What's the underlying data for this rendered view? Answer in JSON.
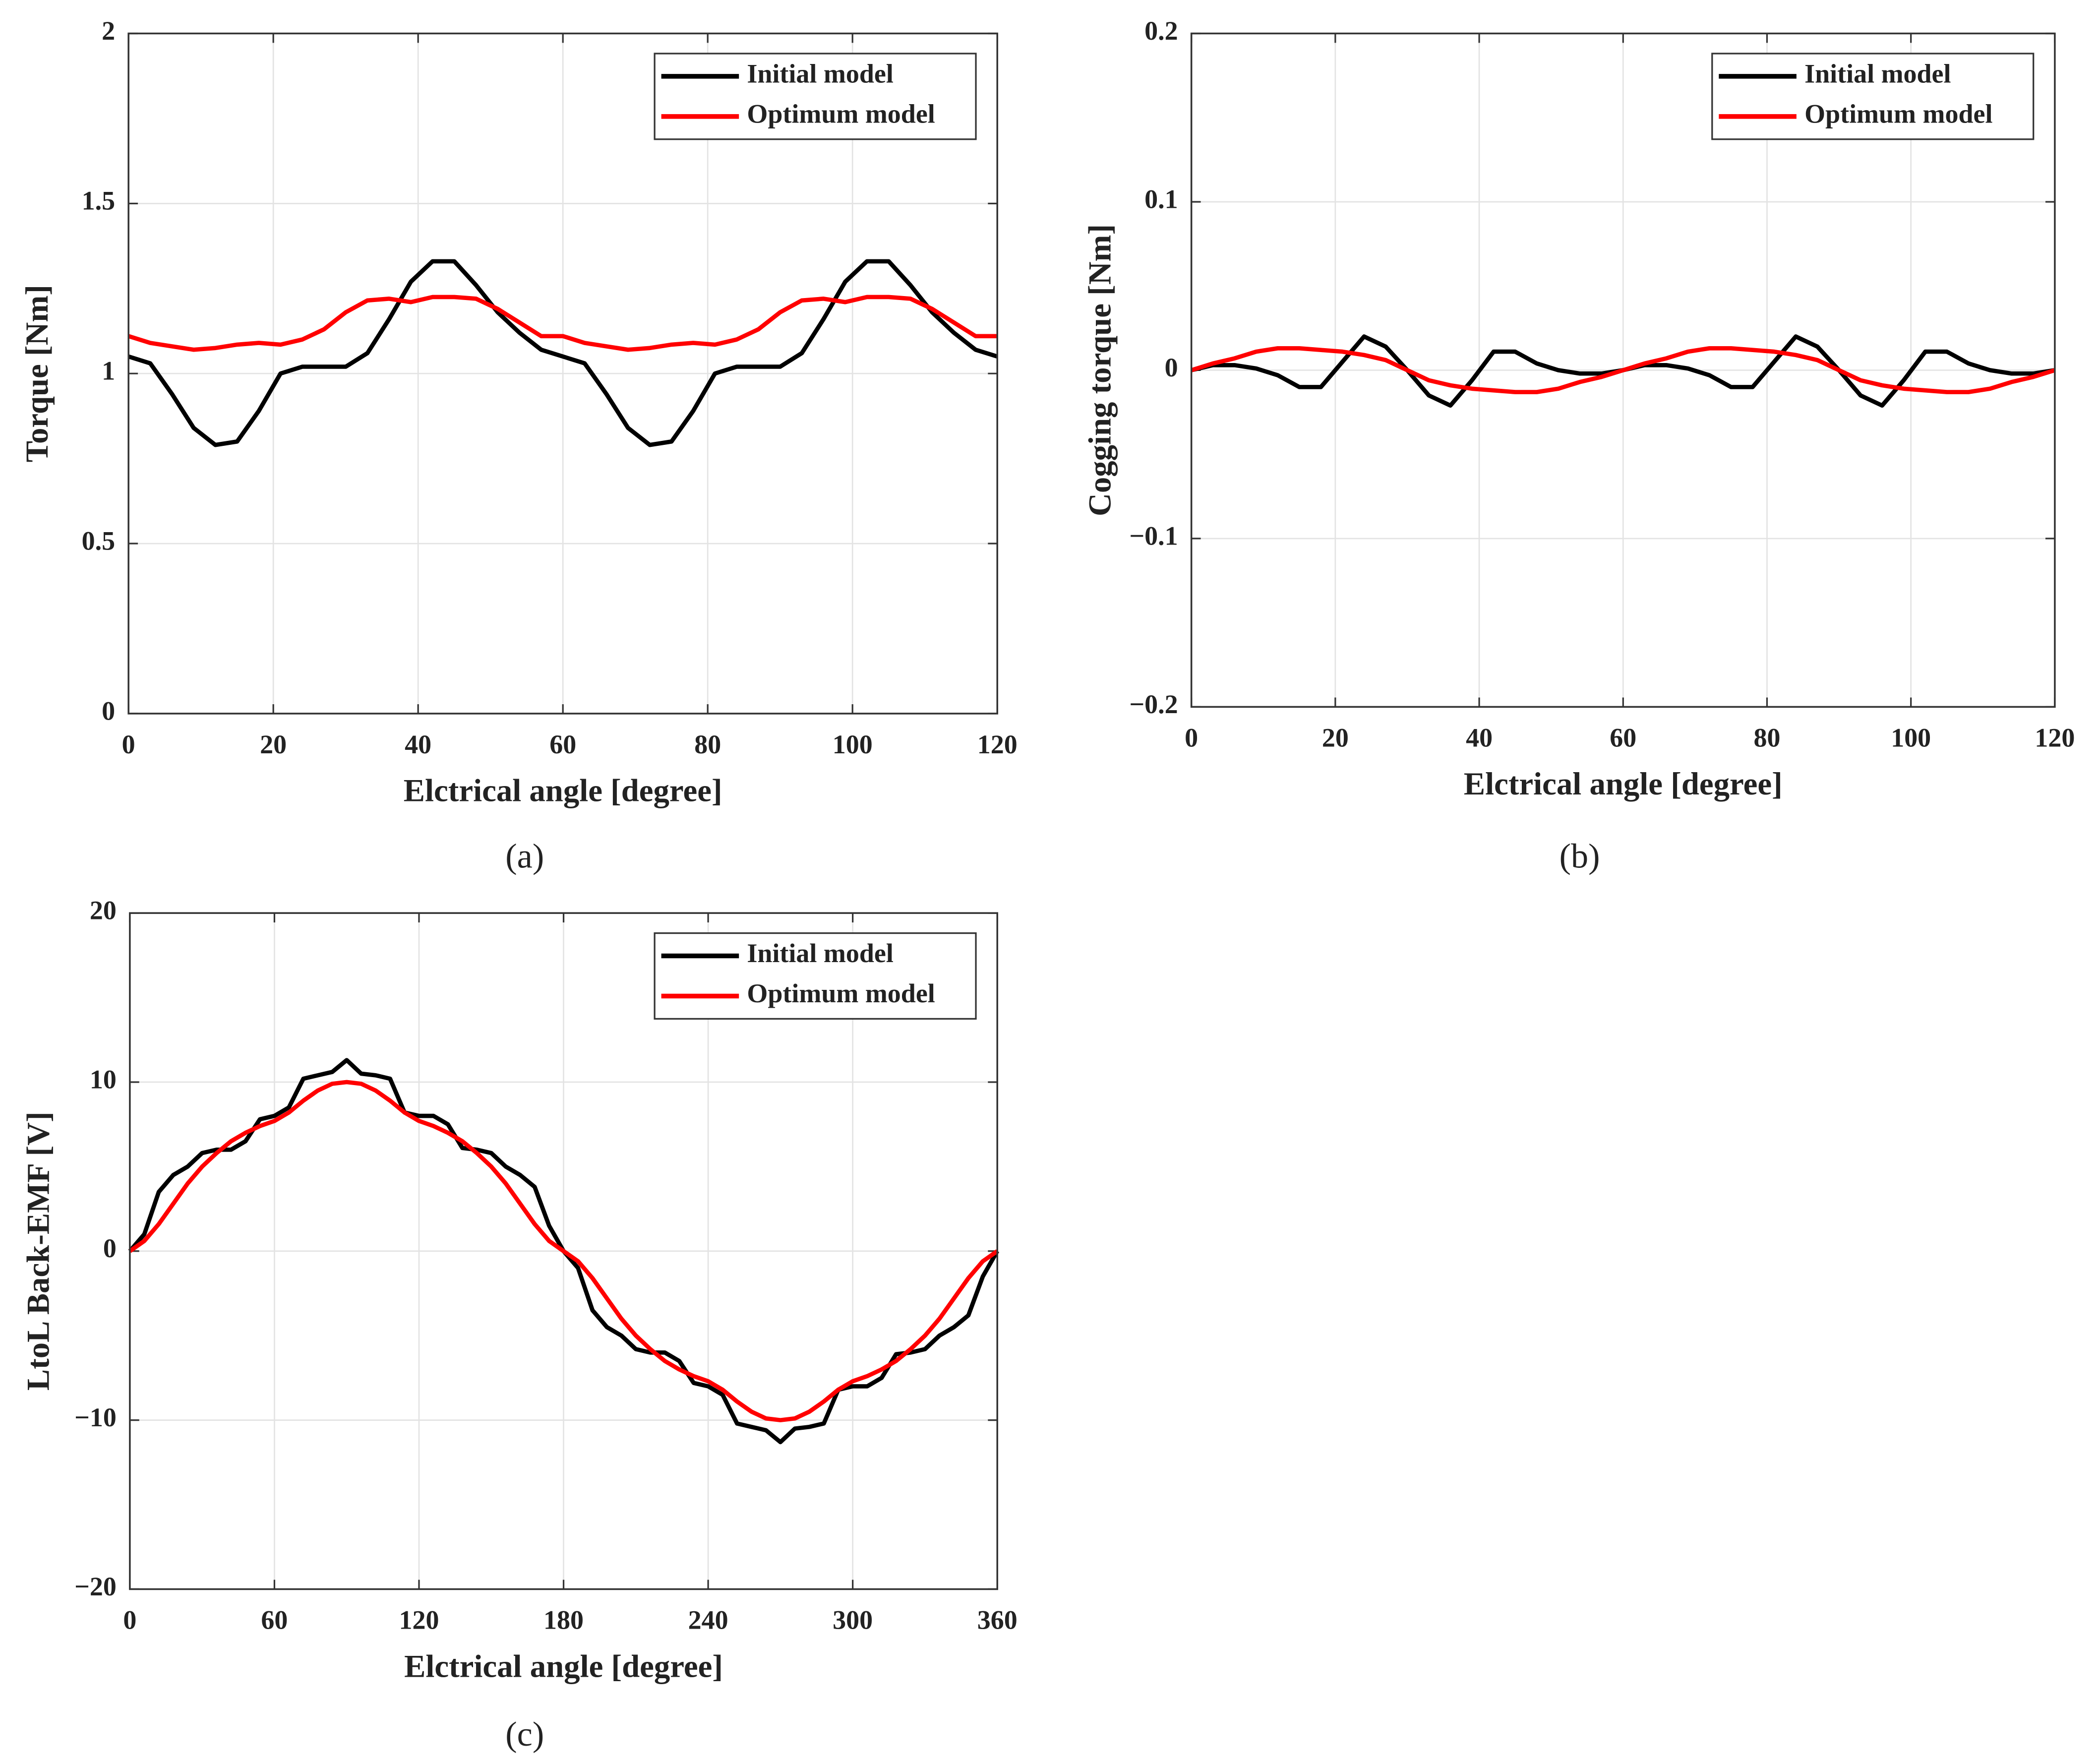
{
  "chart_data": [
    {
      "type": "line",
      "caption": "(a)",
      "xlabel": "Elctrical angle [degree]",
      "ylabel": "Torque [Nm]",
      "x": [
        0,
        3,
        6,
        9,
        12,
        15,
        18,
        21,
        24,
        27,
        30,
        33,
        36,
        39,
        42,
        45,
        48,
        51,
        54,
        57,
        60,
        63,
        66,
        69,
        72,
        75,
        78,
        81,
        84,
        87,
        90,
        93,
        96,
        99,
        102,
        105,
        108,
        111,
        114,
        117,
        120
      ],
      "series": [
        {
          "name": "Initial model",
          "color": "#000000",
          "values": [
            1.05,
            1.03,
            0.94,
            0.84,
            0.79,
            0.8,
            0.89,
            1.0,
            1.02,
            1.02,
            1.02,
            1.06,
            1.16,
            1.27,
            1.33,
            1.33,
            1.26,
            1.18,
            1.12,
            1.07,
            1.05,
            1.03,
            0.94,
            0.84,
            0.79,
            0.8,
            0.89,
            1.0,
            1.02,
            1.02,
            1.02,
            1.06,
            1.16,
            1.27,
            1.33,
            1.33,
            1.26,
            1.18,
            1.12,
            1.07,
            1.05
          ]
        },
        {
          "name": "Optimum model",
          "color": "#ff0000",
          "values": [
            1.11,
            1.09,
            1.08,
            1.07,
            1.075,
            1.085,
            1.09,
            1.085,
            1.1,
            1.13,
            1.18,
            1.215,
            1.22,
            1.21,
            1.225,
            1.225,
            1.22,
            1.19,
            1.15,
            1.11,
            1.11,
            1.09,
            1.08,
            1.07,
            1.075,
            1.085,
            1.09,
            1.085,
            1.1,
            1.13,
            1.18,
            1.215,
            1.22,
            1.21,
            1.225,
            1.225,
            1.22,
            1.19,
            1.15,
            1.11,
            1.11
          ]
        }
      ],
      "xlim": [
        0,
        120
      ],
      "xticks": [
        0,
        20,
        40,
        60,
        80,
        100,
        120
      ],
      "ylim": [
        0,
        2
      ],
      "yticks": [
        0,
        0.5,
        1,
        1.5,
        2
      ],
      "grid": true,
      "legend": "northeast"
    },
    {
      "type": "line",
      "caption": "(b)",
      "xlabel": "Elctrical angle [degree]",
      "ylabel": "Cogging torque [Nm]",
      "x": [
        0,
        3,
        6,
        9,
        12,
        15,
        18,
        21,
        24,
        27,
        30,
        33,
        36,
        39,
        42,
        45,
        48,
        51,
        54,
        57,
        60,
        63,
        66,
        69,
        72,
        75,
        78,
        81,
        84,
        87,
        90,
        93,
        96,
        99,
        102,
        105,
        108,
        111,
        114,
        117,
        120
      ],
      "series": [
        {
          "name": "Initial model",
          "color": "#000000",
          "values": [
            0,
            0.003,
            0.003,
            0.001,
            -0.003,
            -0.01,
            -0.01,
            0.005,
            0.02,
            0.014,
            0,
            -0.015,
            -0.021,
            -0.006,
            0.011,
            0.011,
            0.004,
            0,
            -0.002,
            -0.002,
            0,
            0.003,
            0.003,
            0.001,
            -0.003,
            -0.01,
            -0.01,
            0.005,
            0.02,
            0.014,
            0,
            -0.015,
            -0.021,
            -0.006,
            0.011,
            0.011,
            0.004,
            0,
            -0.002,
            -0.002,
            0
          ]
        },
        {
          "name": "Optimum model",
          "color": "#ff0000",
          "values": [
            0,
            0.004,
            0.007,
            0.011,
            0.013,
            0.013,
            0.012,
            0.011,
            0.009,
            0.006,
            0,
            -0.006,
            -0.009,
            -0.011,
            -0.012,
            -0.013,
            -0.013,
            -0.011,
            -0.007,
            -0.004,
            0,
            0.004,
            0.007,
            0.011,
            0.013,
            0.013,
            0.012,
            0.011,
            0.009,
            0.006,
            0,
            -0.006,
            -0.009,
            -0.011,
            -0.012,
            -0.013,
            -0.013,
            -0.011,
            -0.007,
            -0.004,
            0
          ]
        }
      ],
      "xlim": [
        0,
        120
      ],
      "xticks": [
        0,
        20,
        40,
        60,
        80,
        100,
        120
      ],
      "ylim": [
        -0.2,
        0.2
      ],
      "yticks": [
        {
          "value": -0.2,
          "label": "−0.2"
        },
        {
          "value": -0.1,
          "label": "−0.1"
        },
        0,
        0.1,
        0.2
      ],
      "grid": true,
      "legend": "northeast"
    },
    {
      "type": "line",
      "caption": "(c)",
      "xlabel": "Elctrical angle [degree]",
      "ylabel": "LtoL Back-EMF [V]",
      "x": [
        0,
        6,
        12,
        18,
        24,
        30,
        36,
        42,
        48,
        54,
        60,
        66,
        72,
        78,
        84,
        90,
        96,
        102,
        108,
        114,
        120,
        126,
        132,
        138,
        144,
        150,
        156,
        162,
        168,
        174,
        180,
        186,
        192,
        198,
        204,
        210,
        216,
        222,
        228,
        234,
        240,
        246,
        252,
        258,
        264,
        270,
        276,
        282,
        288,
        294,
        300,
        306,
        312,
        318,
        324,
        330,
        336,
        342,
        348,
        354,
        360
      ],
      "series": [
        {
          "name": "Initial model",
          "color": "#000000",
          "values": [
            0,
            1.0,
            3.5,
            4.5,
            5.0,
            5.8,
            6.0,
            6.0,
            6.5,
            7.8,
            8.0,
            8.5,
            10.2,
            10.4,
            10.6,
            11.3,
            10.5,
            10.4,
            10.2,
            8.2,
            8.0,
            8.0,
            7.5,
            6.1,
            6.0,
            5.8,
            5.0,
            4.5,
            3.8,
            1.5,
            0,
            -1.0,
            -3.5,
            -4.5,
            -5.0,
            -5.8,
            -6.0,
            -6.0,
            -6.5,
            -7.8,
            -8.0,
            -8.5,
            -10.2,
            -10.4,
            -10.6,
            -11.3,
            -10.5,
            -10.4,
            -10.2,
            -8.2,
            -8.0,
            -8.0,
            -7.5,
            -6.1,
            -6.0,
            -5.8,
            -5.0,
            -4.5,
            -3.8,
            -1.5,
            0
          ]
        },
        {
          "name": "Optimum model",
          "color": "#ff0000",
          "values": [
            0,
            0.6,
            1.6,
            2.8,
            4.0,
            5.0,
            5.8,
            6.5,
            7.0,
            7.4,
            7.7,
            8.2,
            8.9,
            9.5,
            9.9,
            10.0,
            9.9,
            9.5,
            8.9,
            8.2,
            7.7,
            7.4,
            7.0,
            6.5,
            5.8,
            5.0,
            4.0,
            2.8,
            1.6,
            0.6,
            0,
            -0.6,
            -1.6,
            -2.8,
            -4.0,
            -5.0,
            -5.8,
            -6.5,
            -7.0,
            -7.4,
            -7.7,
            -8.2,
            -8.9,
            -9.5,
            -9.9,
            -10.0,
            -9.9,
            -9.5,
            -8.9,
            -8.2,
            -7.7,
            -7.4,
            -7.0,
            -6.5,
            -5.8,
            -5.0,
            -4.0,
            -2.8,
            -1.6,
            -0.6,
            0
          ]
        }
      ],
      "xlim": [
        0,
        360
      ],
      "xticks": [
        0,
        60,
        120,
        180,
        240,
        300,
        360
      ],
      "ylim": [
        -20,
        20
      ],
      "yticks": [
        {
          "value": -20,
          "label": "−20"
        },
        {
          "value": -10,
          "label": "−10"
        },
        0,
        10,
        20
      ],
      "grid": true,
      "legend": "northeast"
    }
  ]
}
